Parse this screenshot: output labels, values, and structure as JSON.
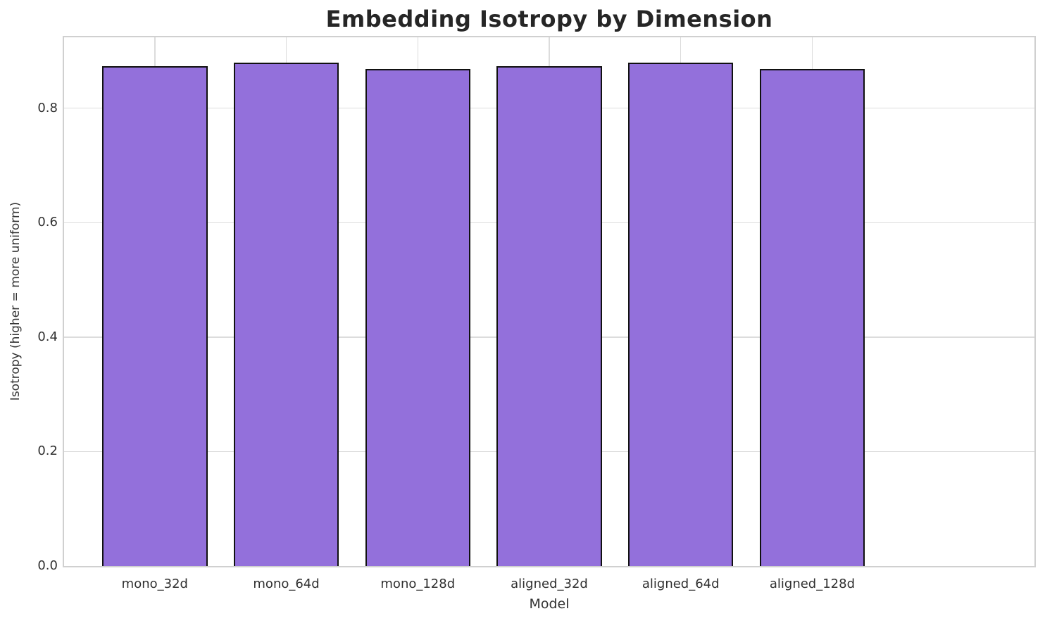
{
  "chart_data": {
    "type": "bar",
    "title": "Embedding Isotropy by Dimension",
    "xlabel": "Model",
    "ylabel": "Isotropy (higher = more uniform)",
    "categories": [
      "mono_32d",
      "mono_64d",
      "mono_128d",
      "aligned_32d",
      "aligned_64d",
      "aligned_128d"
    ],
    "values": [
      0.874,
      0.88,
      0.869,
      0.873,
      0.88,
      0.869
    ],
    "ylim": [
      0,
      0.924
    ],
    "yticks": [
      0.0,
      0.2,
      0.4,
      0.6,
      0.8
    ],
    "ytick_labels": [
      "0.0",
      "0.2",
      "0.4",
      "0.6",
      "0.8"
    ],
    "grid": true,
    "legend": "none",
    "bar_color": "#9370DB",
    "bar_edge_color": "#111111",
    "grid_color": "#dcdcdc",
    "spine_color": "#d0d0d0",
    "tick_text_color": "#303030",
    "title_color": "#262626"
  }
}
